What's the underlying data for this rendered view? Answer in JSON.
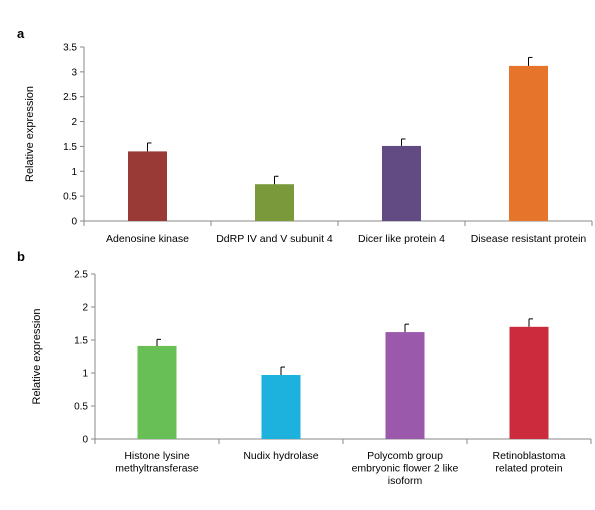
{
  "chart_data": [
    {
      "type": "bar",
      "panel_label": "a",
      "ylabel": "Relative expression",
      "xlabel": "",
      "ylim": [
        0,
        3.5
      ],
      "yticks": [
        "0",
        "0.5",
        "1",
        "1.5",
        "2",
        "2.5",
        "3",
        "3.5"
      ],
      "grid": false,
      "legend": "none",
      "categories": [
        "Adenosine kinase",
        "DdRP IV and V subunit 4",
        "Dicer like protein 4",
        "Disease resistant protein"
      ],
      "values": [
        1.4,
        0.74,
        1.51,
        3.12
      ],
      "errors": [
        0.17,
        0.16,
        0.14,
        0.17
      ],
      "colors": [
        "#9a3a37",
        "#7a993a",
        "#624a82",
        "#e6742a"
      ]
    },
    {
      "type": "bar",
      "panel_label": "b",
      "ylabel": "Relative expression",
      "xlabel": "",
      "ylim": [
        0,
        2.5
      ],
      "yticks": [
        "0",
        "0.5",
        "1",
        "1.5",
        "2",
        "2.5"
      ],
      "grid": false,
      "legend": "none",
      "categories": [
        [
          "Histone lysine",
          "methyltransferase"
        ],
        [
          "Nudix hydrolase"
        ],
        [
          "Polycomb group",
          "embryonic flower 2 like",
          "isoform"
        ],
        [
          "Retinoblastoma",
          "related protein"
        ]
      ],
      "values": [
        1.41,
        0.97,
        1.62,
        1.7
      ],
      "errors": [
        0.1,
        0.12,
        0.12,
        0.12
      ],
      "colors": [
        "#68bf56",
        "#1db1dd",
        "#9b59ab",
        "#cc2b3d"
      ]
    }
  ]
}
